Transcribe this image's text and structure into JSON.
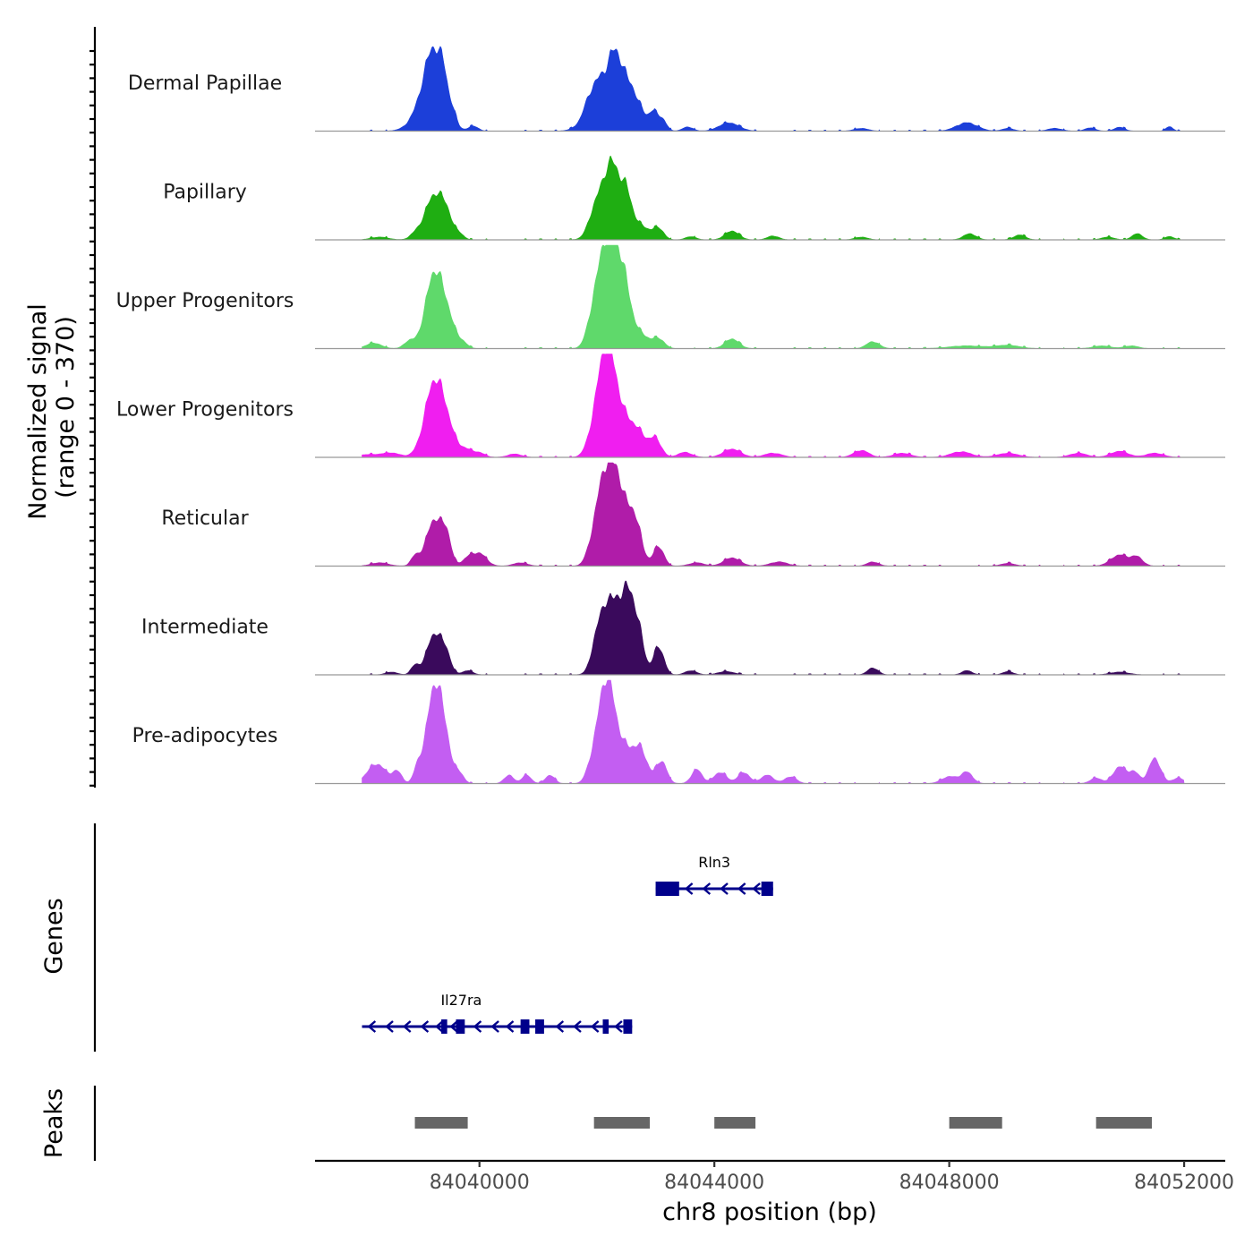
{
  "chart_data": {
    "type": "area",
    "chromosome": "chr8",
    "xlabel": "chr8 position (bp)",
    "ylabel": "Normalized signal",
    "ylabel_range": "(range 0 - 370)",
    "ylim": [
      0,
      370
    ],
    "xlim": [
      84037200,
      84052700
    ],
    "x_ticks": [
      84040000,
      84044000,
      84048000,
      84052000
    ],
    "x_tick_labels": [
      "84040000",
      "84044000",
      "84048000",
      "84052000"
    ],
    "baseline_color": "#999999",
    "signal_start": 84038000,
    "signal_end": 84052000,
    "series": [
      {
        "name": "Dermal Papillae",
        "color": "#1c3fd9",
        "peaks": [
          [
            84039150,
            130,
            220
          ],
          [
            84039250,
            180,
            160
          ],
          [
            84039400,
            55,
            60
          ],
          [
            84039550,
            30,
            60
          ],
          [
            84039900,
            18,
            80
          ],
          [
            84041850,
            20,
            70
          ],
          [
            84042100,
            200,
            220
          ],
          [
            84042300,
            120,
            90
          ],
          [
            84042450,
            125,
            100
          ],
          [
            84042600,
            90,
            80
          ],
          [
            84042750,
            70,
            90
          ],
          [
            84042950,
            60,
            70
          ],
          [
            84043100,
            45,
            80
          ],
          [
            84043550,
            15,
            90
          ],
          [
            84044250,
            30,
            170
          ],
          [
            84046500,
            10,
            120
          ],
          [
            84048300,
            30,
            180
          ],
          [
            84049000,
            10,
            100
          ],
          [
            84049800,
            10,
            120
          ],
          [
            84050400,
            12,
            90
          ],
          [
            84050900,
            14,
            90
          ],
          [
            84051750,
            16,
            60
          ]
        ]
      },
      {
        "name": "Papillary",
        "color": "#1fae12",
        "peaks": [
          [
            84038300,
            10,
            150
          ],
          [
            84038900,
            14,
            90
          ],
          [
            84039250,
            165,
            170
          ],
          [
            84039450,
            40,
            80
          ],
          [
            84039650,
            20,
            80
          ],
          [
            84041900,
            25,
            80
          ],
          [
            84042150,
            210,
            170
          ],
          [
            84042300,
            110,
            100
          ],
          [
            84042500,
            145,
            100
          ],
          [
            84042750,
            50,
            140
          ],
          [
            84043050,
            40,
            90
          ],
          [
            84043600,
            12,
            90
          ],
          [
            84044300,
            32,
            120
          ],
          [
            84045000,
            14,
            100
          ],
          [
            84046500,
            10,
            110
          ],
          [
            84048350,
            22,
            110
          ],
          [
            84049200,
            18,
            100
          ],
          [
            84050700,
            10,
            110
          ],
          [
            84051200,
            22,
            90
          ],
          [
            84051750,
            12,
            80
          ]
        ]
      },
      {
        "name": "Upper Progenitors",
        "color": "#5fd96b",
        "peaks": [
          [
            84038200,
            20,
            130
          ],
          [
            84038800,
            25,
            90
          ],
          [
            84039250,
            280,
            160
          ],
          [
            84039500,
            50,
            90
          ],
          [
            84039700,
            25,
            90
          ],
          [
            84041900,
            40,
            90
          ],
          [
            84042150,
            370,
            160
          ],
          [
            84042350,
            150,
            110
          ],
          [
            84042500,
            150,
            110
          ],
          [
            84042750,
            50,
            130
          ],
          [
            84043050,
            35,
            100
          ],
          [
            84044300,
            35,
            120
          ],
          [
            84046700,
            25,
            110
          ],
          [
            84048300,
            10,
            300
          ],
          [
            84049000,
            12,
            200
          ],
          [
            84050600,
            10,
            150
          ],
          [
            84051100,
            10,
            120
          ]
        ]
      },
      {
        "name": "Lower Progenitors",
        "color": "#f01ef0",
        "peaks": [
          [
            84038100,
            10,
            200
          ],
          [
            84038500,
            15,
            150
          ],
          [
            84039250,
            280,
            170
          ],
          [
            84039500,
            40,
            100
          ],
          [
            84039750,
            30,
            120
          ],
          [
            84040000,
            15,
            100
          ],
          [
            84040600,
            12,
            120
          ],
          [
            84041900,
            20,
            100
          ],
          [
            84042150,
            350,
            160
          ],
          [
            84042400,
            110,
            200
          ],
          [
            84042700,
            70,
            150
          ],
          [
            84043000,
            60,
            100
          ],
          [
            84043500,
            18,
            120
          ],
          [
            84044300,
            30,
            150
          ],
          [
            84045000,
            15,
            150
          ],
          [
            84046500,
            25,
            130
          ],
          [
            84047200,
            15,
            150
          ],
          [
            84048200,
            20,
            180
          ],
          [
            84049000,
            15,
            180
          ],
          [
            84050200,
            15,
            150
          ],
          [
            84050900,
            22,
            150
          ],
          [
            84051500,
            15,
            150
          ]
        ]
      },
      {
        "name": "Reticular",
        "color": "#b01ca9",
        "peaks": [
          [
            84038300,
            12,
            150
          ],
          [
            84038900,
            30,
            70
          ],
          [
            84039250,
            170,
            150
          ],
          [
            84039450,
            65,
            70
          ],
          [
            84039800,
            25,
            90
          ],
          [
            84040000,
            45,
            120
          ],
          [
            84040700,
            12,
            120
          ],
          [
            84041900,
            30,
            90
          ],
          [
            84042150,
            350,
            150
          ],
          [
            84042350,
            150,
            90
          ],
          [
            84042550,
            180,
            130
          ],
          [
            84042700,
            60,
            100
          ],
          [
            84043050,
            70,
            90
          ],
          [
            84043700,
            12,
            130
          ],
          [
            84044300,
            30,
            140
          ],
          [
            84045100,
            15,
            150
          ],
          [
            84046700,
            15,
            100
          ],
          [
            84049000,
            10,
            120
          ],
          [
            84050900,
            40,
            150
          ],
          [
            84051200,
            30,
            100
          ]
        ]
      },
      {
        "name": "Intermediate",
        "color": "#3a0a5c",
        "peaks": [
          [
            84038500,
            10,
            100
          ],
          [
            84038900,
            30,
            70
          ],
          [
            84039250,
            150,
            140
          ],
          [
            84039450,
            40,
            70
          ],
          [
            84039800,
            15,
            90
          ],
          [
            84041950,
            35,
            80
          ],
          [
            84042150,
            250,
            140
          ],
          [
            84042350,
            120,
            90
          ],
          [
            84042550,
            295,
            120
          ],
          [
            84042750,
            80,
            80
          ],
          [
            84043050,
            100,
            90
          ],
          [
            84043600,
            15,
            100
          ],
          [
            84044200,
            12,
            140
          ],
          [
            84046700,
            25,
            90
          ],
          [
            84048300,
            15,
            90
          ],
          [
            84049000,
            12,
            90
          ],
          [
            84050900,
            10,
            160
          ]
        ]
      },
      {
        "name": "Pre-adipocytes",
        "color": "#c35ef2",
        "peaks": [
          [
            84038250,
            70,
            160
          ],
          [
            84038600,
            40,
            80
          ],
          [
            84038950,
            50,
            70
          ],
          [
            84039250,
            360,
            140
          ],
          [
            84039450,
            60,
            80
          ],
          [
            84039650,
            40,
            80
          ],
          [
            84040500,
            30,
            80
          ],
          [
            84040800,
            30,
            80
          ],
          [
            84041200,
            30,
            80
          ],
          [
            84041900,
            40,
            90
          ],
          [
            84042150,
            340,
            140
          ],
          [
            84042450,
            120,
            200
          ],
          [
            84042750,
            90,
            120
          ],
          [
            84043100,
            80,
            90
          ],
          [
            84043700,
            50,
            90
          ],
          [
            84044100,
            40,
            110
          ],
          [
            84044500,
            40,
            100
          ],
          [
            84044900,
            30,
            110
          ],
          [
            84045300,
            25,
            100
          ],
          [
            84048000,
            25,
            130
          ],
          [
            84048300,
            40,
            100
          ],
          [
            84050500,
            20,
            100
          ],
          [
            84050900,
            60,
            110
          ],
          [
            84051150,
            40,
            90
          ],
          [
            84051500,
            90,
            100
          ],
          [
            84051900,
            20,
            100
          ]
        ]
      }
    ],
    "genes": [
      {
        "name": "Rln3",
        "color": "#00008b",
        "start": 84043000,
        "end": 84045000,
        "row": 1,
        "exons": [
          [
            84043000,
            84043400
          ],
          [
            84044800,
            84045000
          ]
        ],
        "arrows": [
          84043550,
          84043850,
          84044150,
          84044450,
          84044700
        ]
      },
      {
        "name": "Il27ra",
        "color": "#00008b",
        "start": 84038000,
        "end": 84042600,
        "row": 2,
        "exons": [
          [
            84039350,
            84039450
          ],
          [
            84039600,
            84039750
          ],
          [
            84040700,
            84040850
          ],
          [
            84040950,
            84041100
          ],
          [
            84042100,
            84042200
          ],
          [
            84042450,
            84042600
          ]
        ],
        "arrows": [
          84038150,
          84038450,
          84038750,
          84039050,
          84039300,
          84039550,
          84039950,
          84040250,
          84040500,
          84041350,
          84041650,
          84041950,
          84042350
        ]
      }
    ],
    "peaks": {
      "color": "#666666",
      "regions": [
        [
          84038900,
          84039800
        ],
        [
          84041950,
          84042900
        ],
        [
          84044000,
          84044700
        ],
        [
          84048000,
          84048900
        ],
        [
          84050500,
          84051450
        ]
      ]
    },
    "panel_titles": {
      "genes": "Genes",
      "peaks": "Peaks"
    }
  }
}
